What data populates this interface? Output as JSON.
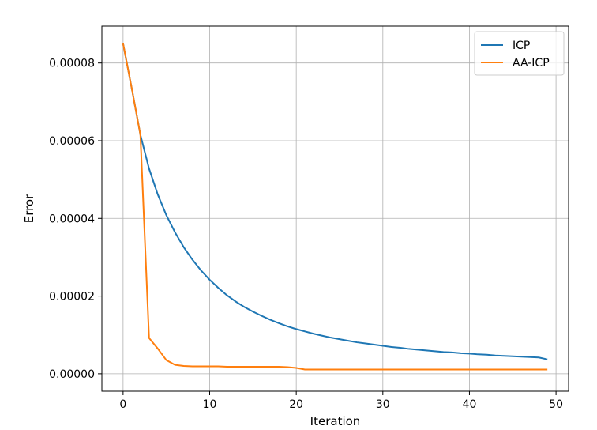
{
  "chart_data": {
    "type": "line",
    "title": "",
    "xlabel": "Iteration",
    "ylabel": "Error",
    "xlim": [
      -2.45,
      51.45
    ],
    "ylim": [
      -4.5e-06,
      8.95e-05
    ],
    "xticks": [
      0,
      10,
      20,
      30,
      40,
      50
    ],
    "xtick_labels": [
      "0",
      "10",
      "20",
      "30",
      "40",
      "50"
    ],
    "yticks": [
      0,
      2e-05,
      4e-05,
      6e-05,
      8e-05
    ],
    "ytick_labels": [
      "0.00000",
      "0.00002",
      "0.00004",
      "0.00006",
      "0.00008"
    ],
    "grid": true,
    "legend": "top-right",
    "series": [
      {
        "name": "ICP",
        "color": "#1f77b4",
        "x": [
          0,
          1,
          2,
          3,
          4,
          5,
          6,
          7,
          8,
          9,
          10,
          11,
          12,
          13,
          14,
          15,
          16,
          17,
          18,
          19,
          20,
          21,
          22,
          23,
          24,
          25,
          26,
          27,
          28,
          29,
          30,
          31,
          32,
          33,
          34,
          35,
          36,
          37,
          38,
          39,
          40,
          41,
          42,
          43,
          44,
          45,
          46,
          47,
          48,
          49
        ],
        "values": [
          8.5e-05,
          7.35e-05,
          6.15e-05,
          5.28e-05,
          4.62e-05,
          4.08e-05,
          3.64e-05,
          3.26e-05,
          2.94e-05,
          2.66e-05,
          2.42e-05,
          2.21e-05,
          2.02e-05,
          1.86e-05,
          1.72e-05,
          1.6e-05,
          1.49e-05,
          1.39e-05,
          1.3e-05,
          1.22e-05,
          1.15e-05,
          1.09e-05,
          1.03e-05,
          9.8e-06,
          9.3e-06,
          8.9e-06,
          8.5e-06,
          8.1e-06,
          7.8e-06,
          7.5e-06,
          7.2e-06,
          6.9e-06,
          6.7e-06,
          6.4e-06,
          6.2e-06,
          6e-06,
          5.8e-06,
          5.6e-06,
          5.5e-06,
          5.3e-06,
          5.2e-06,
          5e-06,
          4.9e-06,
          4.7e-06,
          4.6e-06,
          4.5e-06,
          4.4e-06,
          4.3e-06,
          4.2e-06,
          3.7e-06
        ]
      },
      {
        "name": "AA-ICP",
        "color": "#ff7f0e",
        "x": [
          0,
          1,
          2,
          3,
          4,
          5,
          6,
          7,
          8,
          9,
          10,
          11,
          12,
          13,
          14,
          15,
          16,
          17,
          18,
          19,
          20,
          21,
          22,
          23,
          24,
          25,
          26,
          27,
          28,
          29,
          30,
          31,
          32,
          33,
          34,
          35,
          36,
          37,
          38,
          39,
          40,
          41,
          42,
          43,
          44,
          45,
          46,
          47,
          48,
          49
        ],
        "values": [
          8.5e-05,
          7.35e-05,
          6.15e-05,
          9.2e-06,
          6.5e-06,
          3.5e-06,
          2.3e-06,
          2e-06,
          1.9e-06,
          1.9e-06,
          1.9e-06,
          1.9e-06,
          1.8e-06,
          1.8e-06,
          1.8e-06,
          1.8e-06,
          1.8e-06,
          1.8e-06,
          1.8e-06,
          1.7e-06,
          1.5e-06,
          1.1e-06,
          1.1e-06,
          1.1e-06,
          1.1e-06,
          1.1e-06,
          1.1e-06,
          1.1e-06,
          1.1e-06,
          1.1e-06,
          1.1e-06,
          1.1e-06,
          1.1e-06,
          1.1e-06,
          1.1e-06,
          1.1e-06,
          1.1e-06,
          1.1e-06,
          1.1e-06,
          1.1e-06,
          1.1e-06,
          1.1e-06,
          1.1e-06,
          1.1e-06,
          1.1e-06,
          1.1e-06,
          1.1e-06,
          1.1e-06,
          1.1e-06,
          1.1e-06
        ]
      }
    ]
  }
}
